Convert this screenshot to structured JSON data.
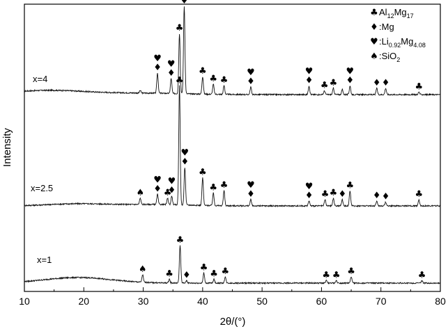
{
  "chart_data": {
    "type": "line",
    "xlabel": "2θ/(°)",
    "ylabel": "Intensity",
    "xlim": [
      10,
      80
    ],
    "x_ticks": [
      "10",
      "20",
      "30",
      "40",
      "50",
      "60",
      "70",
      "80"
    ],
    "legend": [
      {
        "symbol": "♣",
        "name": "Al",
        "sub1": "12",
        "name2": "Mg",
        "sub2": "17"
      },
      {
        "symbol": "♦",
        "name": ":Mg"
      },
      {
        "symbol": "♥",
        "name": ":Li",
        "sub1": "0.92",
        "name2": "Mg",
        "sub2": "4.08"
      },
      {
        "symbol": "♠",
        "name": ":SiO",
        "sub1": "2"
      }
    ],
    "series": [
      {
        "name": "x=4",
        "baseline": 0.0,
        "peaks": [
          {
            "x": 29.5,
            "h": 0.02
          },
          {
            "x": 32.4,
            "h": 0.16
          },
          {
            "x": 34.7,
            "h": 0.12
          },
          {
            "x": 36.1,
            "h": 0.48
          },
          {
            "x": 36.9,
            "h": 0.7
          },
          {
            "x": 40.0,
            "h": 0.14
          },
          {
            "x": 41.8,
            "h": 0.08
          },
          {
            "x": 43.6,
            "h": 0.07
          },
          {
            "x": 48.1,
            "h": 0.06
          },
          {
            "x": 57.9,
            "h": 0.07
          },
          {
            "x": 60.5,
            "h": 0.03
          },
          {
            "x": 62.0,
            "h": 0.05
          },
          {
            "x": 63.5,
            "h": 0.04
          },
          {
            "x": 64.8,
            "h": 0.07
          },
          {
            "x": 69.3,
            "h": 0.05
          },
          {
            "x": 70.8,
            "h": 0.05
          },
          {
            "x": 76.4,
            "h": 0.02
          }
        ],
        "markers": [
          {
            "x": 32.4,
            "symbols": [
              "♥",
              "♦"
            ]
          },
          {
            "x": 34.7,
            "symbols": [
              "♥",
              "♦"
            ]
          },
          {
            "x": 36.1,
            "symbols": [
              "♣"
            ]
          },
          {
            "x": 36.9,
            "symbols": [
              "♥",
              "♦"
            ]
          },
          {
            "x": 40.0,
            "symbols": [
              "♣"
            ]
          },
          {
            "x": 41.8,
            "symbols": [
              "♣"
            ]
          },
          {
            "x": 43.6,
            "symbols": [
              "♣"
            ]
          },
          {
            "x": 48.1,
            "symbols": [
              "♥",
              "♦"
            ]
          },
          {
            "x": 57.9,
            "symbols": [
              "♥",
              "♦"
            ]
          },
          {
            "x": 60.5,
            "symbols": [
              "♣"
            ]
          },
          {
            "x": 62.0,
            "symbols": [
              "♣"
            ]
          },
          {
            "x": 64.8,
            "symbols": [
              "♥",
              "♦"
            ]
          },
          {
            "x": 69.3,
            "symbols": [
              "♦"
            ]
          },
          {
            "x": 70.8,
            "symbols": [
              "♦"
            ]
          },
          {
            "x": 76.4,
            "symbols": [
              "♣"
            ]
          }
        ]
      },
      {
        "name": "x=2.5",
        "baseline": 0.0,
        "peaks": [
          {
            "x": 29.5,
            "h": 0.05
          },
          {
            "x": 32.4,
            "h": 0.08
          },
          {
            "x": 34.1,
            "h": 0.05
          },
          {
            "x": 34.8,
            "h": 0.07
          },
          {
            "x": 36.1,
            "h": 0.95
          },
          {
            "x": 37.0,
            "h": 0.3
          },
          {
            "x": 40.0,
            "h": 0.22
          },
          {
            "x": 41.8,
            "h": 0.1
          },
          {
            "x": 43.6,
            "h": 0.12
          },
          {
            "x": 48.1,
            "h": 0.05
          },
          {
            "x": 57.9,
            "h": 0.04
          },
          {
            "x": 60.6,
            "h": 0.05
          },
          {
            "x": 62.0,
            "h": 0.06
          },
          {
            "x": 63.5,
            "h": 0.05
          },
          {
            "x": 64.8,
            "h": 0.12
          },
          {
            "x": 69.3,
            "h": 0.04
          },
          {
            "x": 70.8,
            "h": 0.03
          },
          {
            "x": 76.4,
            "h": 0.05
          }
        ],
        "markers": [
          {
            "x": 29.5,
            "symbols": [
              "♠"
            ]
          },
          {
            "x": 32.4,
            "symbols": [
              "♥",
              "♦"
            ]
          },
          {
            "x": 34.1,
            "symbols": [
              "♣"
            ]
          },
          {
            "x": 34.8,
            "symbols": [
              "♥",
              "♦"
            ]
          },
          {
            "x": 36.1,
            "symbols": [
              "♣"
            ]
          },
          {
            "x": 37.0,
            "symbols": [
              "♥",
              "♦"
            ]
          },
          {
            "x": 40.0,
            "symbols": [
              "♣"
            ]
          },
          {
            "x": 41.8,
            "symbols": [
              "♣"
            ]
          },
          {
            "x": 43.6,
            "symbols": [
              "♣"
            ]
          },
          {
            "x": 48.1,
            "symbols": [
              "♥",
              "♦"
            ]
          },
          {
            "x": 57.9,
            "symbols": [
              "♥",
              "♦"
            ]
          },
          {
            "x": 60.6,
            "symbols": [
              "♣"
            ]
          },
          {
            "x": 62.0,
            "symbols": [
              "♣"
            ]
          },
          {
            "x": 63.5,
            "symbols": [
              "♦"
            ]
          },
          {
            "x": 64.8,
            "symbols": [
              "♣"
            ]
          },
          {
            "x": 69.3,
            "symbols": [
              "♦"
            ]
          },
          {
            "x": 70.8,
            "symbols": [
              "♦"
            ]
          },
          {
            "x": 76.4,
            "symbols": [
              "♣"
            ]
          }
        ]
      },
      {
        "name": "x=1",
        "baseline": 0.0,
        "peaks": [
          {
            "x": 29.9,
            "h": 0.06
          },
          {
            "x": 34.4,
            "h": 0.03
          },
          {
            "x": 36.2,
            "h": 0.3
          },
          {
            "x": 37.3,
            "h": 0.02
          },
          {
            "x": 40.2,
            "h": 0.08
          },
          {
            "x": 41.9,
            "h": 0.03
          },
          {
            "x": 43.8,
            "h": 0.05
          },
          {
            "x": 60.8,
            "h": 0.02
          },
          {
            "x": 62.5,
            "h": 0.02
          },
          {
            "x": 65.0,
            "h": 0.05
          },
          {
            "x": 76.9,
            "h": 0.02
          }
        ],
        "markers": [
          {
            "x": 29.9,
            "symbols": [
              "♠"
            ]
          },
          {
            "x": 34.4,
            "symbols": [
              "♣"
            ]
          },
          {
            "x": 36.2,
            "symbols": [
              "♣"
            ]
          },
          {
            "x": 37.3,
            "symbols": [
              "♦"
            ]
          },
          {
            "x": 40.2,
            "symbols": [
              "♣"
            ]
          },
          {
            "x": 41.9,
            "symbols": [
              "♣"
            ]
          },
          {
            "x": 43.8,
            "symbols": [
              "♣"
            ]
          },
          {
            "x": 60.8,
            "symbols": [
              "♣"
            ]
          },
          {
            "x": 62.5,
            "symbols": [
              "♣"
            ]
          },
          {
            "x": 65.0,
            "symbols": [
              "♣"
            ]
          },
          {
            "x": 76.9,
            "symbols": [
              "♣"
            ]
          }
        ]
      }
    ]
  }
}
